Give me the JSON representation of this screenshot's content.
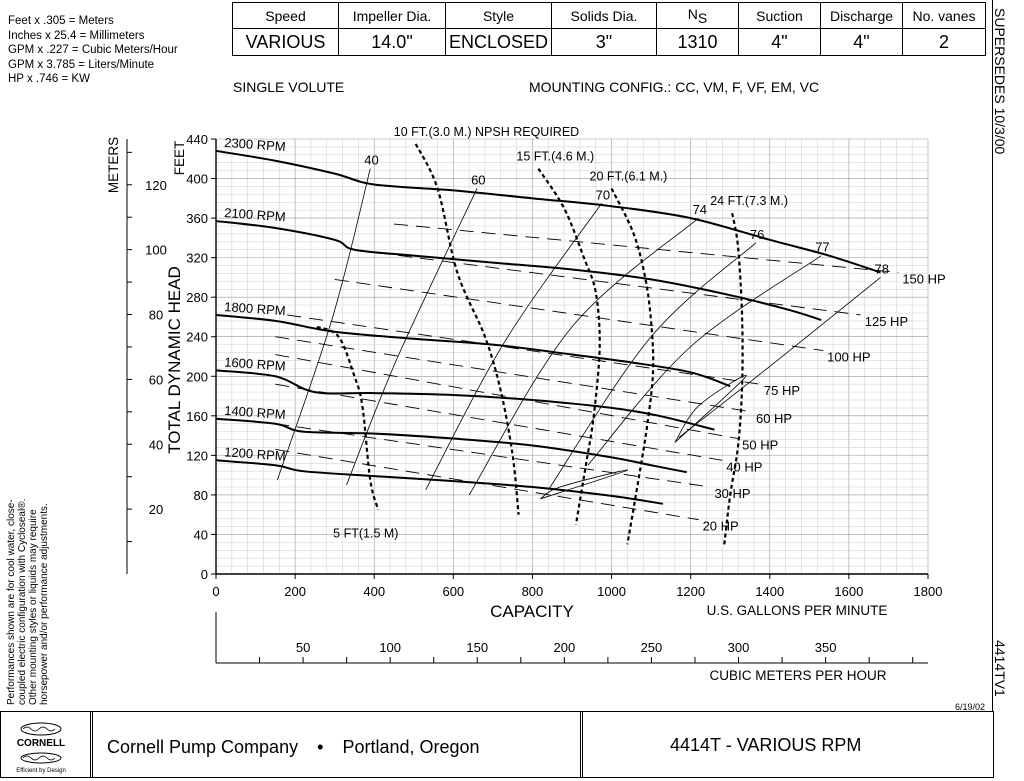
{
  "conversions": [
    "Feet x .305 = Meters",
    "Inches x 25.4 = Millimeters",
    "GPM x .227 = Cubic Meters/Hour",
    "GPM x 3.785 = Liters/Minute",
    "HP x .746 = KW"
  ],
  "specs": {
    "headers": [
      "Speed",
      "Impeller Dia.",
      "Style",
      "Solids Dia.",
      "N",
      "Suction",
      "Discharge",
      "No. vanes"
    ],
    "ns_subscript": "S",
    "values": [
      "VARIOUS",
      "14.0\"",
      "ENCLOSED",
      "3\"",
      "1310",
      "4\"",
      "4\"",
      "2"
    ]
  },
  "supersedes": "SUPERSEDES  10/3/00",
  "curve_id": "4414TV1",
  "date": "6/19/02",
  "volute": "SINGLE VOLUTE",
  "mounting": "MOUNTING CONFIG.:  CC,  VM,  F,  VF,  EM,  VC",
  "side_note": [
    "Performances shown are for cool water, close-",
    "coupled electric configuration with Cycloseal®.",
    "Other mounting styles or liquids may require",
    "horsepower and/or performance adjustments."
  ],
  "footer": {
    "brand": "CORNELL",
    "tagline": "Efficient by Design",
    "company": "Cornell Pump Company",
    "location": "Portland, Oregon",
    "model": "4414T - VARIOUS RPM"
  },
  "chart_data": {
    "type": "line",
    "xlabel": "CAPACITY",
    "xunits": "U.S. GALLONS PER MINUTE",
    "ylabel": "TOTAL DYNAMIC HEAD",
    "y_feet_label": "FEET",
    "y_meters_label": "METERS",
    "x2label": "CUBIC METERS PER HOUR",
    "xlim": [
      0,
      1800
    ],
    "ylim": [
      0,
      440
    ],
    "xticks": [
      0,
      200,
      400,
      600,
      800,
      1000,
      1200,
      1400,
      1600,
      1800
    ],
    "yticks": [
      0,
      40,
      80,
      120,
      160,
      200,
      240,
      280,
      320,
      360,
      400,
      440
    ],
    "meter_ticks": [
      20,
      40,
      60,
      80,
      100,
      120
    ],
    "m3h_ticks": [
      50,
      100,
      150,
      200,
      250,
      300,
      350
    ],
    "grid": true,
    "rpm_curves": [
      {
        "name": "2300 RPM",
        "points": [
          [
            0,
            428
          ],
          [
            150,
            418
          ],
          [
            300,
            405
          ],
          [
            400,
            394
          ],
          [
            600,
            388
          ],
          [
            800,
            380
          ],
          [
            1000,
            372
          ],
          [
            1200,
            360
          ],
          [
            1400,
            338
          ],
          [
            1550,
            322
          ],
          [
            1680,
            305
          ]
        ]
      },
      {
        "name": "2100 RPM",
        "points": [
          [
            0,
            357
          ],
          [
            150,
            350
          ],
          [
            300,
            338
          ],
          [
            350,
            328
          ],
          [
            500,
            322
          ],
          [
            700,
            315
          ],
          [
            900,
            308
          ],
          [
            1100,
            298
          ],
          [
            1300,
            282
          ],
          [
            1450,
            267
          ],
          [
            1530,
            257
          ]
        ]
      },
      {
        "name": "1800 RPM",
        "points": [
          [
            0,
            262
          ],
          [
            150,
            256
          ],
          [
            300,
            245
          ],
          [
            500,
            238
          ],
          [
            700,
            232
          ],
          [
            900,
            222
          ],
          [
            1050,
            214
          ],
          [
            1200,
            204
          ],
          [
            1300,
            190
          ]
        ]
      },
      {
        "name": "1600 RPM",
        "points": [
          [
            0,
            206
          ],
          [
            150,
            200
          ],
          [
            250,
            184
          ],
          [
            400,
            183
          ],
          [
            600,
            181
          ],
          [
            800,
            176
          ],
          [
            1000,
            168
          ],
          [
            1120,
            160
          ],
          [
            1260,
            146
          ]
        ]
      },
      {
        "name": "1400 RPM",
        "points": [
          [
            0,
            157
          ],
          [
            150,
            152
          ],
          [
            220,
            144
          ],
          [
            400,
            142
          ],
          [
            600,
            137
          ],
          [
            800,
            130
          ],
          [
            1000,
            118
          ],
          [
            1100,
            110
          ],
          [
            1190,
            103
          ]
        ]
      },
      {
        "name": "1200 RPM",
        "points": [
          [
            0,
            115
          ],
          [
            150,
            110
          ],
          [
            220,
            104
          ],
          [
            400,
            99
          ],
          [
            600,
            94
          ],
          [
            800,
            88
          ],
          [
            1000,
            79
          ],
          [
            1130,
            71
          ]
        ]
      }
    ],
    "npsh_curves": [
      {
        "name": "5 FT(1.5 M)",
        "points": [
          [
            255,
            250
          ],
          [
            310,
            240
          ],
          [
            350,
            200
          ],
          [
            370,
            170
          ],
          [
            390,
            95
          ],
          [
            410,
            65
          ]
        ]
      },
      {
        "name": "10 FT.(3.0 M.) NPSH REQUIRED",
        "points": [
          [
            505,
            435
          ],
          [
            560,
            390
          ],
          [
            610,
            305
          ],
          [
            680,
            240
          ],
          [
            720,
            185
          ],
          [
            750,
            120
          ],
          [
            765,
            60
          ]
        ]
      },
      {
        "name": "15 FT.(4.6 M.)",
        "points": [
          [
            815,
            410
          ],
          [
            880,
            370
          ],
          [
            930,
            320
          ],
          [
            960,
            285
          ],
          [
            970,
            230
          ],
          [
            955,
            160
          ],
          [
            935,
            110
          ],
          [
            910,
            50
          ]
        ]
      },
      {
        "name": "20 FT.(6.1 M.)",
        "points": [
          [
            1000,
            390
          ],
          [
            1055,
            345
          ],
          [
            1085,
            300
          ],
          [
            1100,
            255
          ],
          [
            1105,
            205
          ],
          [
            1090,
            150
          ],
          [
            1070,
            100
          ],
          [
            1040,
            30
          ]
        ]
      },
      {
        "name": "24 FT.(7.3 M.)",
        "points": [
          [
            1305,
            365
          ],
          [
            1320,
            330
          ],
          [
            1330,
            260
          ],
          [
            1330,
            190
          ],
          [
            1320,
            130
          ],
          [
            1300,
            80
          ],
          [
            1285,
            30
          ]
        ]
      }
    ],
    "efficiency_lines": [
      {
        "name": "40",
        "points": [
          [
            155,
            95
          ],
          [
            295,
            260
          ],
          [
            390,
            410
          ]
        ]
      },
      {
        "name": "60",
        "points": [
          [
            330,
            90
          ],
          [
            460,
            220
          ],
          [
            660,
            390
          ]
        ]
      },
      {
        "name": "70",
        "points": [
          [
            530,
            85
          ],
          [
            730,
            235
          ],
          [
            975,
            375
          ]
        ]
      },
      {
        "name": "74",
        "points": [
          [
            640,
            80
          ],
          [
            900,
            250
          ],
          [
            1220,
            360
          ]
        ]
      },
      {
        "name": "76",
        "points": [
          [
            840,
            85
          ],
          [
            1100,
            240
          ],
          [
            1365,
            335
          ]
        ]
      },
      {
        "name": "77",
        "points": [
          [
            940,
            110
          ],
          [
            1200,
            230
          ],
          [
            1530,
            322
          ]
        ]
      },
      {
        "name": "78",
        "points": [
          [
            1170,
            138
          ],
          [
            1400,
            210
          ],
          [
            1680,
            300
          ]
        ]
      }
    ],
    "efficiency_loops": [
      {
        "name": "77-low",
        "points": [
          [
            1160,
            133
          ],
          [
            1340,
            200
          ],
          [
            1220,
            170
          ],
          [
            1160,
            133
          ]
        ]
      },
      {
        "name": "70-low",
        "points": [
          [
            820,
            76
          ],
          [
            1040,
            105
          ],
          [
            870,
            88
          ],
          [
            820,
            76
          ]
        ]
      }
    ],
    "hp_lines": [
      {
        "name": "150 HP",
        "points": [
          [
            450,
            354
          ],
          [
            1725,
            305
          ]
        ]
      },
      {
        "name": "125 HP",
        "points": [
          [
            350,
            328
          ],
          [
            1630,
            262
          ]
        ]
      },
      {
        "name": "100 HP",
        "points": [
          [
            300,
            298
          ],
          [
            1535,
            226
          ]
        ]
      },
      {
        "name": "75 HP",
        "points": [
          [
            180,
            262
          ],
          [
            1375,
            192
          ]
        ]
      },
      {
        "name": "60 HP",
        "points": [
          [
            150,
            240
          ],
          [
            1355,
            164
          ]
        ]
      },
      {
        "name": "50 HP",
        "points": [
          [
            150,
            222
          ],
          [
            1320,
            137
          ]
        ]
      },
      {
        "name": "40 HP",
        "points": [
          [
            150,
            192
          ],
          [
            1280,
            115
          ]
        ]
      },
      {
        "name": "30 HP",
        "points": [
          [
            150,
            152
          ],
          [
            1250,
            88
          ]
        ]
      },
      {
        "name": "20 HP",
        "points": [
          [
            150,
            126
          ],
          [
            1220,
            55
          ]
        ]
      }
    ]
  }
}
